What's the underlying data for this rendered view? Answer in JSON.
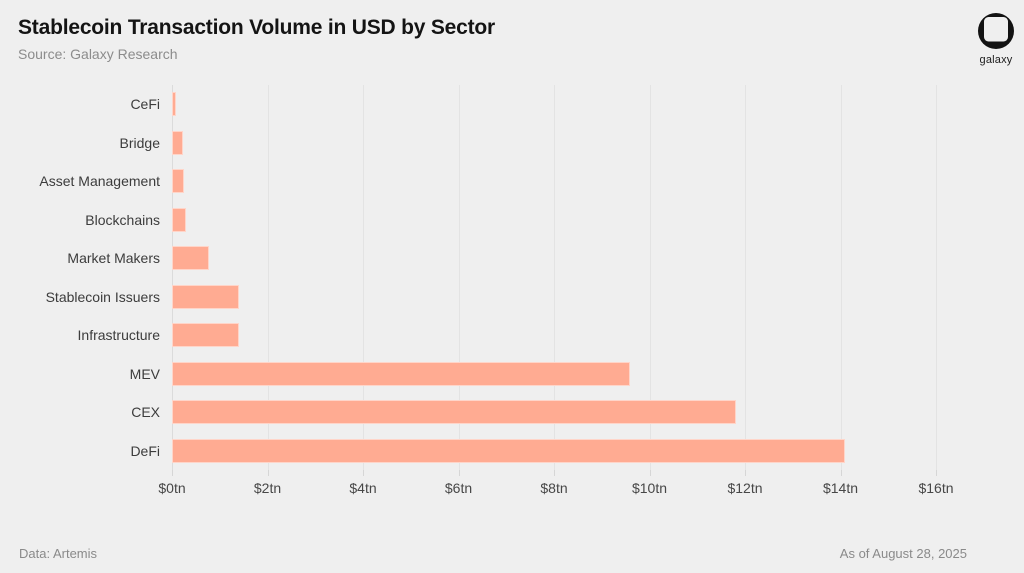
{
  "header": {
    "title": "Stablecoin Transaction Volume in USD by Sector",
    "subtitle": "Source: Galaxy Research",
    "logo_text": "galaxy"
  },
  "footer": {
    "left": "Data: Artemis",
    "right": "As of August 28, 2025"
  },
  "colors": {
    "background": "#EFEFEF",
    "bar": "#FFAB92",
    "gridline": "#E3E3E3",
    "title_text": "#141414",
    "muted_text": "#8C8C8C",
    "label_text": "#3C3C3C"
  },
  "chart_data": {
    "type": "bar",
    "orientation": "horizontal",
    "title": "Stablecoin Transaction Volume in USD by Sector",
    "source": "Source: Galaxy Research",
    "data_credit": "Data: Artemis",
    "as_of": "As of August 28, 2025",
    "unit": "trillion USD",
    "categories": [
      "CeFi",
      "Bridge",
      "Asset Management",
      "Blockchains",
      "Market Makers",
      "Stablecoin Issuers",
      "Infrastructure",
      "MEV",
      "CEX",
      "DeFi"
    ],
    "values": [
      0.08,
      0.22,
      0.25,
      0.3,
      0.78,
      1.4,
      1.4,
      9.6,
      11.8,
      14.1
    ],
    "xlabel": "",
    "ylabel": "",
    "xlim": [
      0,
      16
    ],
    "x_ticks": [
      0,
      2,
      4,
      6,
      8,
      10,
      12,
      14,
      16
    ],
    "x_tick_labels": [
      "$0tn",
      "$2tn",
      "$4tn",
      "$6tn",
      "$8tn",
      "$10tn",
      "$12tn",
      "$14tn",
      "$16tn"
    ],
    "grid": "vertical",
    "legend": "none"
  }
}
